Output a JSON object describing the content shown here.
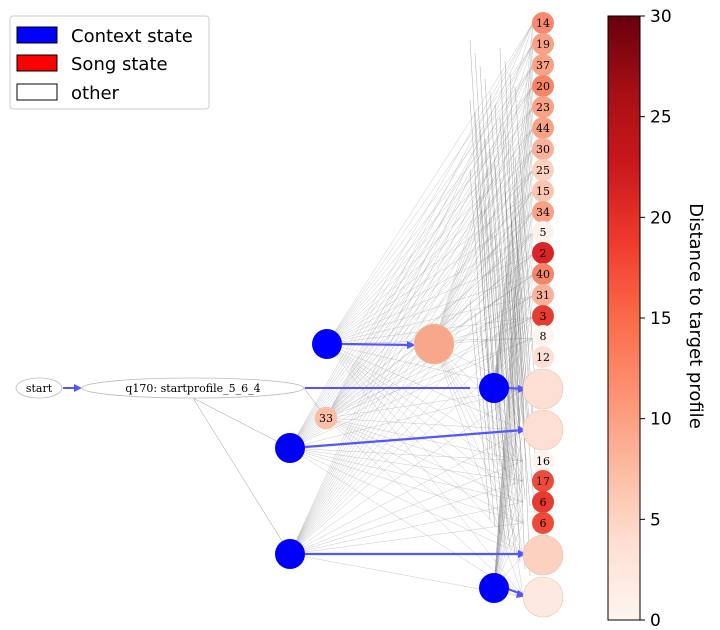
{
  "legend": {
    "items": [
      {
        "label": "Context state",
        "color": "#0000ff"
      },
      {
        "label": "Song state",
        "color": "#ff0000"
      },
      {
        "label": "other",
        "color": "#ffffff"
      }
    ]
  },
  "graph": {
    "start_label": "start",
    "profile_label": "q170: startprofile_5_6_4",
    "song_state_labels": [
      "14",
      "19",
      "37",
      "20",
      "23",
      "44",
      "30",
      "25",
      "15",
      "34",
      "5",
      "2",
      "40",
      "31",
      "3",
      "8",
      "12",
      "16",
      "17",
      "6",
      "6"
    ],
    "side_state_label": "33"
  },
  "colorbar": {
    "label": "Distance to target profile",
    "ticks": [
      "0",
      "5",
      "10",
      "15",
      "20",
      "25",
      "30"
    ],
    "min": 0,
    "max": 30
  }
}
